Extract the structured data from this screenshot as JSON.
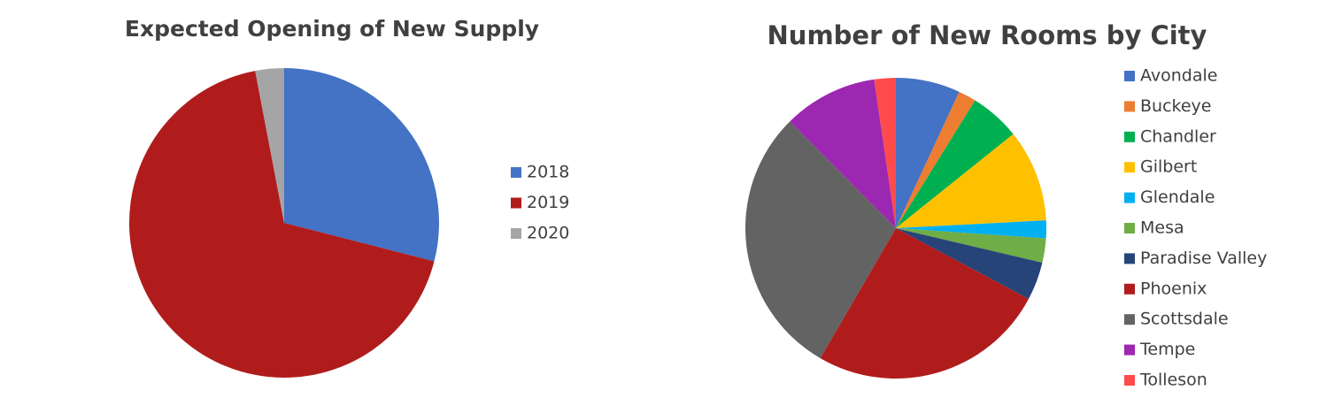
{
  "chart_data": [
    {
      "type": "pie",
      "title": "Expected Opening of New Supply",
      "categories": [
        "2018",
        "2019",
        "2020"
      ],
      "values": [
        29,
        68,
        3
      ],
      "colors": [
        "#4472c4",
        "#b01c1c",
        "#a5a5a5"
      ]
    },
    {
      "type": "pie",
      "title": "Number of New Rooms by City",
      "categories": [
        "Avondale",
        "Buckeye",
        "Chandler",
        "Gilbert",
        "Glendale",
        "Mesa",
        "Paradise Valley",
        "Phoenix",
        "Scottsdale",
        "Tempe",
        "Tolleson"
      ],
      "values": [
        6.9,
        1.9,
        5.4,
        9.9,
        1.9,
        2.6,
        4.1,
        25.5,
        29.1,
        10.1,
        2.3
      ],
      "colors": [
        "#4472c4",
        "#ed7d31",
        "#00b050",
        "#ffc000",
        "#00b0f0",
        "#70ad47",
        "#264478",
        "#b01c1c",
        "#636363",
        "#9c27b0",
        "#ff4b4b"
      ]
    }
  ]
}
